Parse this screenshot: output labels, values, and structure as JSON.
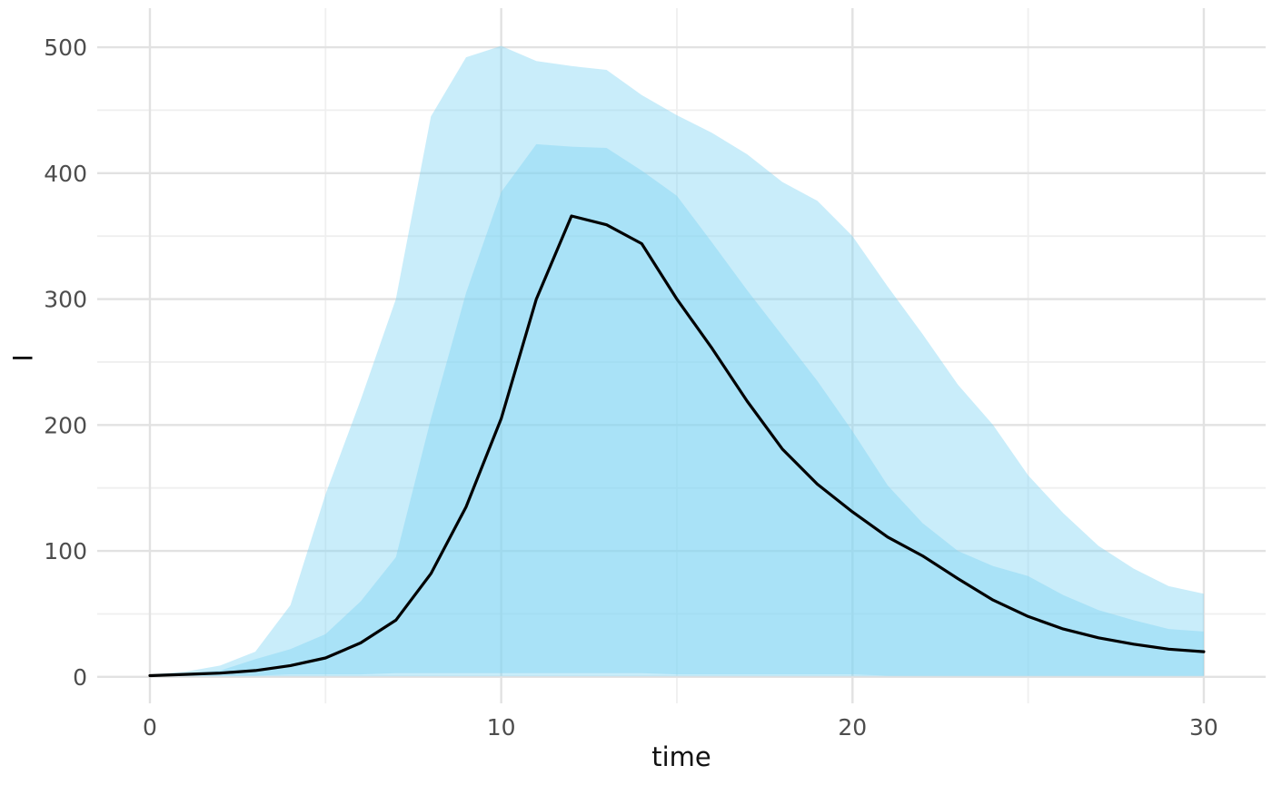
{
  "chart_data": {
    "type": "line",
    "subtype": "median-line-with-nested-ribbons",
    "title": "",
    "xlabel": "time",
    "ylabel": "I",
    "legend": "none",
    "grid": true,
    "xlim": [
      -1.5,
      31.76
    ],
    "ylim": [
      -21,
      531
    ],
    "xticks": [
      0,
      10,
      20,
      30
    ],
    "yticks": [
      0,
      100,
      200,
      300,
      400,
      500
    ],
    "x_minor_ticks": [
      5,
      15,
      25
    ],
    "y_minor_ticks": [
      50,
      150,
      250,
      350,
      450
    ],
    "x": [
      0,
      1,
      2,
      3,
      4,
      5,
      6,
      7,
      8,
      9,
      10,
      11,
      12,
      13,
      14,
      15,
      16,
      17,
      18,
      19,
      20,
      21,
      22,
      23,
      24,
      25,
      26,
      27,
      28,
      29,
      30
    ],
    "series": [
      {
        "name": "median",
        "role": "median-line",
        "values": [
          1,
          2,
          3,
          5,
          9,
          15,
          27,
          45,
          82,
          135,
          205,
          300,
          366,
          359,
          344,
          300,
          261,
          219,
          181,
          153,
          131,
          111,
          96,
          78,
          61,
          48,
          38,
          31,
          26,
          22,
          20
        ]
      }
    ],
    "bands": [
      {
        "name": "outer-interval",
        "upper": [
          2,
          4,
          9,
          20,
          57,
          145,
          220,
          300,
          445,
          492,
          501,
          489,
          485,
          482,
          462,
          446,
          432,
          415,
          393,
          378,
          350,
          310,
          272,
          232,
          200,
          160,
          130,
          104,
          86,
          72,
          66
        ],
        "lower": [
          0.5,
          0.5,
          0.5,
          0.5,
          0.5,
          0.5,
          0.5,
          0.5,
          0.5,
          0.5,
          0.5,
          0.5,
          0.5,
          0.5,
          0.5,
          0.5,
          0.5,
          0.5,
          0.5,
          0.5,
          0.5,
          0.5,
          0.5,
          0.5,
          0.5,
          0.5,
          0.5,
          0.5,
          0.5,
          0.5,
          0.5
        ]
      },
      {
        "name": "inner-interval",
        "upper": [
          2,
          3,
          5,
          14,
          22,
          34,
          60,
          95,
          205,
          305,
          385,
          423,
          421,
          420,
          402,
          382,
          345,
          307,
          271,
          235,
          195,
          152,
          122,
          100,
          88,
          80,
          65,
          53,
          45,
          38,
          36
        ],
        "lower": [
          1,
          1,
          1,
          1,
          2,
          2,
          2,
          3,
          3,
          3,
          3,
          3,
          3,
          3,
          3,
          2,
          2,
          2,
          2,
          2,
          2,
          1,
          1,
          1,
          1,
          1,
          1,
          1,
          1,
          1,
          1
        ]
      }
    ],
    "colors": {
      "band_fill": "#7ED3F3",
      "band_opacity": 0.42,
      "median_line": "#000000",
      "grid_major": "#E2E2E2",
      "grid_minor": "#EFEFEF",
      "tick_label": "#4D4D4D",
      "axis_title": "#111111",
      "background": "#FFFFFF"
    }
  }
}
